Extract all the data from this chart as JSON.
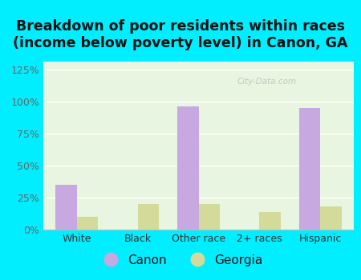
{
  "title": "Breakdown of poor residents within races\n(income below poverty level) in Canon, GA",
  "categories": [
    "White",
    "Black",
    "Other race",
    "2+ races",
    "Hispanic"
  ],
  "canon_values": [
    35,
    0,
    96,
    0,
    95
  ],
  "georgia_values": [
    10,
    20,
    20,
    14,
    18
  ],
  "canon_color": "#c8a8e0",
  "georgia_color": "#d4db9a",
  "ylim": [
    0,
    131
  ],
  "yticks": [
    0,
    25,
    50,
    75,
    100,
    125
  ],
  "ytick_labels": [
    "0%",
    "25%",
    "50%",
    "75%",
    "100%",
    "125%"
  ],
  "bar_width": 0.35,
  "background_outer": "#00eeff",
  "background_inner": "#e8f5e0",
  "title_fontsize": 12.5,
  "legend_labels": [
    "Canon",
    "Georgia"
  ],
  "legend_fontsize": 11,
  "watermark": "City-Data.com",
  "axis_label_fontsize": 9
}
